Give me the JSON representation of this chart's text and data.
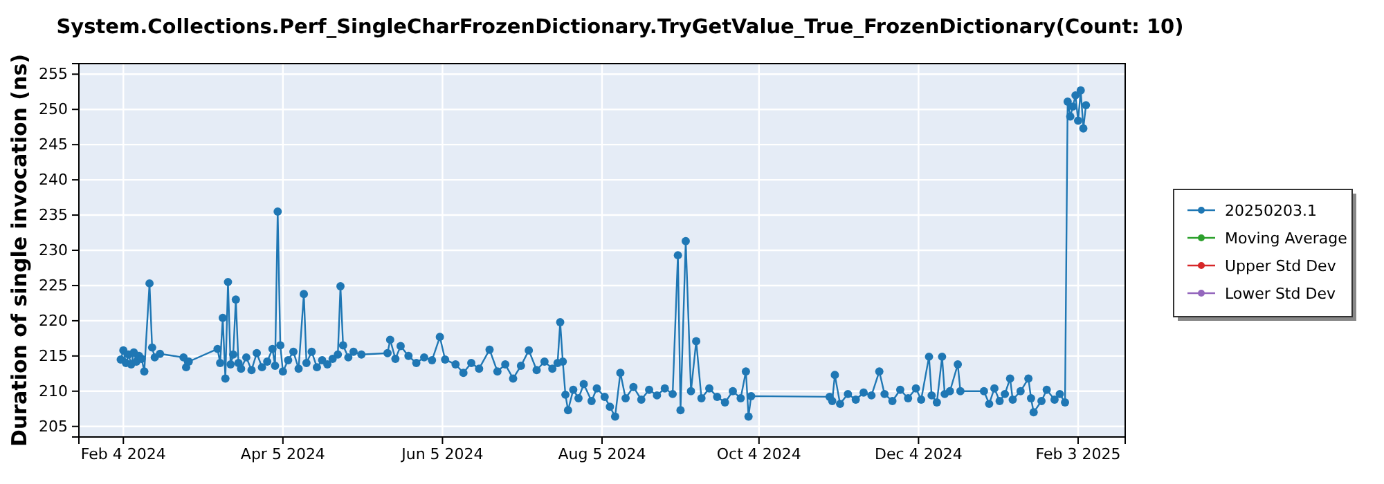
{
  "chart_data": {
    "type": "line",
    "title": "System.Collections.Perf_SingleCharFrozenDictionary.TryGetValue_True_FrozenDictionary(Count: 10)",
    "ylabel": "Duration of single invocation (ns)",
    "x": [
      "2024-02-03",
      "2024-02-04",
      "2024-02-05",
      "2024-02-06",
      "2024-02-07",
      "2024-02-08",
      "2024-02-09",
      "2024-02-10",
      "2024-02-11",
      "2024-02-12",
      "2024-02-14",
      "2024-02-15",
      "2024-02-16",
      "2024-02-18",
      "2024-02-27",
      "2024-02-28",
      "2024-02-29",
      "2024-03-11",
      "2024-03-12",
      "2024-03-13",
      "2024-03-14",
      "2024-03-15",
      "2024-03-16",
      "2024-03-17",
      "2024-03-18",
      "2024-03-19",
      "2024-03-20",
      "2024-03-22",
      "2024-03-24",
      "2024-03-26",
      "2024-03-28",
      "2024-03-30",
      "2024-04-01",
      "2024-04-02",
      "2024-04-03",
      "2024-04-04",
      "2024-04-05",
      "2024-04-07",
      "2024-04-09",
      "2024-04-11",
      "2024-04-13",
      "2024-04-14",
      "2024-04-16",
      "2024-04-18",
      "2024-04-20",
      "2024-04-22",
      "2024-04-24",
      "2024-04-26",
      "2024-04-27",
      "2024-04-28",
      "2024-04-30",
      "2024-05-02",
      "2024-05-05",
      "2024-05-15",
      "2024-05-16",
      "2024-05-18",
      "2024-05-20",
      "2024-05-23",
      "2024-05-26",
      "2024-05-29",
      "2024-06-01",
      "2024-06-04",
      "2024-06-06",
      "2024-06-10",
      "2024-06-13",
      "2024-06-16",
      "2024-06-19",
      "2024-06-23",
      "2024-06-26",
      "2024-06-29",
      "2024-07-02",
      "2024-07-05",
      "2024-07-08",
      "2024-07-11",
      "2024-07-14",
      "2024-07-17",
      "2024-07-19",
      "2024-07-20",
      "2024-07-21",
      "2024-07-22",
      "2024-07-23",
      "2024-07-25",
      "2024-07-27",
      "2024-07-29",
      "2024-08-01",
      "2024-08-03",
      "2024-08-06",
      "2024-08-08",
      "2024-08-10",
      "2024-08-12",
      "2024-08-14",
      "2024-08-17",
      "2024-08-20",
      "2024-08-23",
      "2024-08-26",
      "2024-08-29",
      "2024-09-01",
      "2024-09-03",
      "2024-09-04",
      "2024-09-06",
      "2024-09-08",
      "2024-09-10",
      "2024-09-12",
      "2024-09-15",
      "2024-09-18",
      "2024-09-21",
      "2024-09-24",
      "2024-09-27",
      "2024-09-29",
      "2024-09-30",
      "2024-10-01",
      "2024-10-31",
      "2024-11-01",
      "2024-11-02",
      "2024-11-04",
      "2024-11-07",
      "2024-11-10",
      "2024-11-13",
      "2024-11-16",
      "2024-11-19",
      "2024-11-21",
      "2024-11-24",
      "2024-11-27",
      "2024-11-30",
      "2024-12-03",
      "2024-12-05",
      "2024-12-08",
      "2024-12-09",
      "2024-12-11",
      "2024-12-13",
      "2024-12-14",
      "2024-12-16",
      "2024-12-19",
      "2024-12-20",
      "2024-12-29",
      "2024-12-31",
      "2025-01-02",
      "2025-01-04",
      "2025-01-06",
      "2025-01-08",
      "2025-01-09",
      "2025-01-12",
      "2025-01-15",
      "2025-01-16",
      "2025-01-17",
      "2025-01-20",
      "2025-01-22",
      "2025-01-25",
      "2025-01-27",
      "2025-01-29",
      "2025-01-30",
      "2025-01-31",
      "2025-02-01",
      "2025-02-02",
      "2025-02-03",
      "2025-02-04",
      "2025-02-05",
      "2025-02-06"
    ],
    "series": [
      {
        "name": "20250203.1",
        "color": "#1f77b4",
        "values": [
          214.5,
          215.8,
          214.0,
          215.2,
          213.8,
          215.5,
          214.2,
          215.0,
          214.6,
          212.8,
          225.3,
          216.2,
          214.8,
          215.3,
          214.8,
          213.4,
          214.2,
          216.0,
          214.0,
          220.4,
          211.8,
          225.5,
          213.8,
          215.2,
          223.0,
          214.0,
          213.2,
          214.8,
          213.0,
          215.4,
          213.4,
          214.2,
          216.0,
          213.6,
          235.5,
          216.5,
          212.8,
          214.4,
          215.6,
          213.2,
          223.8,
          214.0,
          215.6,
          213.4,
          214.4,
          213.8,
          214.6,
          215.2,
          224.9,
          216.5,
          214.8,
          215.6,
          215.2,
          215.4,
          217.3,
          214.6,
          216.4,
          215.0,
          214.0,
          214.8,
          214.4,
          217.7,
          214.5,
          213.8,
          212.6,
          214.0,
          213.2,
          215.9,
          212.8,
          213.8,
          211.8,
          213.6,
          215.8,
          213.0,
          214.2,
          213.2,
          214.0,
          219.8,
          214.2,
          209.5,
          207.3,
          210.2,
          209.0,
          211.0,
          208.6,
          210.4,
          209.2,
          207.8,
          206.4,
          212.6,
          209.0,
          210.6,
          208.8,
          210.2,
          209.4,
          210.4,
          209.6,
          229.3,
          207.3,
          231.3,
          210.0,
          217.1,
          209.0,
          210.4,
          209.2,
          208.4,
          210.0,
          209.0,
          212.8,
          206.4,
          209.3,
          209.2,
          208.6,
          212.3,
          208.2,
          209.6,
          208.8,
          209.8,
          209.4,
          212.8,
          209.6,
          208.6,
          210.2,
          209.0,
          210.4,
          208.8,
          214.9,
          209.4,
          208.4,
          214.9,
          209.6,
          210.0,
          213.8,
          210.0,
          210.0,
          208.2,
          210.4,
          208.6,
          209.6,
          211.8,
          208.8,
          210.0,
          211.8,
          209.0,
          207.0,
          208.6,
          210.2,
          208.8,
          209.6,
          208.4,
          251.1,
          249.0,
          250.4,
          252.0,
          248.4,
          252.7,
          247.3,
          250.6
        ]
      },
      {
        "name": "Moving Average",
        "color": "#2ca02c",
        "values": [
          null,
          null,
          null,
          null,
          null,
          null,
          null,
          null,
          null,
          null,
          null,
          null,
          null,
          null,
          null,
          null,
          null,
          null,
          null,
          null,
          null,
          null,
          null,
          null,
          null,
          null,
          null,
          null,
          null,
          null,
          null,
          null,
          null,
          null,
          null,
          null,
          null,
          null,
          null,
          null,
          null,
          null,
          null,
          null,
          null,
          null,
          null,
          null,
          null,
          null,
          null,
          null,
          null,
          null,
          null,
          null,
          null,
          null,
          null,
          null,
          null,
          null,
          null,
          null,
          null,
          null,
          null,
          null,
          null,
          null,
          null,
          null,
          null,
          null,
          null,
          null,
          null,
          null,
          null,
          null,
          null,
          null,
          null,
          null,
          null,
          null,
          null,
          null,
          null,
          null,
          null,
          null,
          null,
          null,
          null,
          null,
          null,
          null,
          null,
          null,
          null,
          null,
          null,
          null,
          null,
          null,
          null,
          null,
          null,
          null,
          null,
          null,
          null,
          null,
          null,
          null,
          null,
          null,
          null,
          null,
          null,
          null,
          null,
          null,
          null,
          null,
          null,
          null,
          null,
          null,
          null,
          null,
          null,
          null,
          null,
          null,
          null,
          null,
          null,
          null,
          null,
          null,
          null,
          null,
          null,
          null,
          null,
          null,
          null,
          null,
          null,
          null,
          null,
          null,
          null,
          null,
          null,
          null
        ]
      },
      {
        "name": "Upper Std Dev",
        "color": "#d62728",
        "values": [
          null,
          null,
          null,
          null,
          null,
          null,
          null,
          null,
          null,
          null,
          null,
          null,
          null,
          null,
          null,
          null,
          null,
          null,
          null,
          null,
          null,
          null,
          null,
          null,
          null,
          null,
          null,
          null,
          null,
          null,
          null,
          null,
          null,
          null,
          null,
          null,
          null,
          null,
          null,
          null,
          null,
          null,
          null,
          null,
          null,
          null,
          null,
          null,
          null,
          null,
          null,
          null,
          null,
          null,
          null,
          null,
          null,
          null,
          null,
          null,
          null,
          null,
          null,
          null,
          null,
          null,
          null,
          null,
          null,
          null,
          null,
          null,
          null,
          null,
          null,
          null,
          null,
          null,
          null,
          null,
          null,
          null,
          null,
          null,
          null,
          null,
          null,
          null,
          null,
          null,
          null,
          null,
          null,
          null,
          null,
          null,
          null,
          null,
          null,
          null,
          null,
          null,
          null,
          null,
          null,
          null,
          null,
          null,
          null,
          null,
          null,
          null,
          null,
          null,
          null,
          null,
          null,
          null,
          null,
          null,
          null,
          null,
          null,
          null,
          null,
          null,
          null,
          null,
          null,
          null,
          null,
          null,
          null,
          null,
          null,
          null,
          null,
          null,
          null,
          null,
          null,
          null,
          null,
          null,
          null,
          null,
          null,
          null,
          null,
          null,
          null,
          null,
          null,
          null,
          null,
          null,
          null,
          null
        ]
      },
      {
        "name": "Lower Std Dev",
        "color": "#9467bd",
        "values": [
          null,
          null,
          null,
          null,
          null,
          null,
          null,
          null,
          null,
          null,
          null,
          null,
          null,
          null,
          null,
          null,
          null,
          null,
          null,
          null,
          null,
          null,
          null,
          null,
          null,
          null,
          null,
          null,
          null,
          null,
          null,
          null,
          null,
          null,
          null,
          null,
          null,
          null,
          null,
          null,
          null,
          null,
          null,
          null,
          null,
          null,
          null,
          null,
          null,
          null,
          null,
          null,
          null,
          null,
          null,
          null,
          null,
          null,
          null,
          null,
          null,
          null,
          null,
          null,
          null,
          null,
          null,
          null,
          null,
          null,
          null,
          null,
          null,
          null,
          null,
          null,
          null,
          null,
          null,
          null,
          null,
          null,
          null,
          null,
          null,
          null,
          null,
          null,
          null,
          null,
          null,
          null,
          null,
          null,
          null,
          null,
          null,
          null,
          null,
          null,
          null,
          null,
          null,
          null,
          null,
          null,
          null,
          null,
          null,
          null,
          null,
          null,
          null,
          null,
          null,
          null,
          null,
          null,
          null,
          null,
          null,
          null,
          null,
          null,
          null,
          null,
          null,
          null,
          null,
          null,
          null,
          null,
          null,
          null,
          null,
          null,
          null,
          null,
          null,
          null,
          null,
          null,
          null,
          null,
          null,
          null,
          null,
          null,
          null,
          null,
          null,
          null,
          null,
          null,
          null,
          null,
          null,
          null
        ]
      }
    ],
    "xlim": [
      "2024-01-18",
      "2025-02-21"
    ],
    "xticks": [
      {
        "value": "2024-02-04",
        "label": "Feb 4 2024"
      },
      {
        "value": "2024-04-05",
        "label": "Apr 5 2024"
      },
      {
        "value": "2024-06-05",
        "label": "Jun 5 2024"
      },
      {
        "value": "2024-08-05",
        "label": "Aug 5 2024"
      },
      {
        "value": "2024-10-04",
        "label": "Oct 4 2024"
      },
      {
        "value": "2024-12-04",
        "label": "Dec 4 2024"
      },
      {
        "value": "2025-02-03",
        "label": "Feb 3 2025"
      }
    ],
    "ylim": [
      203.5,
      256.5
    ],
    "yticks": [
      205,
      210,
      215,
      220,
      225,
      230,
      235,
      240,
      245,
      250,
      255
    ],
    "grid": true,
    "legend": "right",
    "marker": "circle",
    "line_style": "solid"
  }
}
